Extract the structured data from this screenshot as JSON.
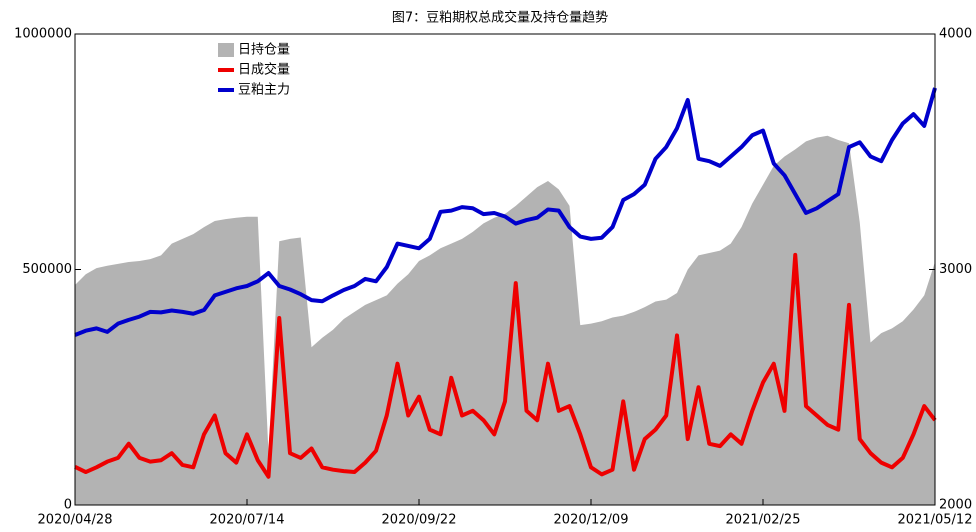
{
  "chart_data": {
    "type": "line",
    "title": "图7：豆粕期权总成交量及持仓量趋势",
    "categories": [
      "2020/04/28",
      null,
      null,
      null,
      null,
      null,
      null,
      null,
      null,
      null,
      null,
      null,
      null,
      null,
      null,
      null,
      "2020/07/14",
      null,
      null,
      null,
      null,
      null,
      null,
      null,
      null,
      null,
      null,
      null,
      null,
      null,
      null,
      null,
      "2020/09/22",
      null,
      null,
      null,
      null,
      null,
      null,
      null,
      null,
      null,
      null,
      null,
      null,
      null,
      null,
      null,
      "2020/12/09",
      null,
      null,
      null,
      null,
      null,
      null,
      null,
      null,
      null,
      null,
      null,
      null,
      null,
      null,
      null,
      "2021/02/25",
      null,
      null,
      null,
      null,
      null,
      null,
      null,
      null,
      null,
      null,
      null,
      null,
      null,
      null,
      null,
      "2021/05/12"
    ],
    "series": [
      {
        "name": "日持仓量",
        "style": "area",
        "color": "#b3b3b3",
        "values": [
          467000,
          490000,
          503000,
          508000,
          512000,
          516000,
          518000,
          522000,
          530000,
          555000,
          565000,
          575000,
          590000,
          603000,
          607000,
          610000,
          612000,
          612000,
          110000,
          560000,
          565000,
          568000,
          335000,
          355000,
          372000,
          395000,
          410000,
          425000,
          435000,
          445000,
          470000,
          490000,
          518000,
          530000,
          545000,
          555000,
          565000,
          580000,
          598000,
          610000,
          618000,
          635000,
          655000,
          675000,
          688000,
          670000,
          635000,
          382000,
          385000,
          390000,
          398000,
          402000,
          410000,
          420000,
          432000,
          436000,
          450000,
          500000,
          530000,
          535000,
          540000,
          555000,
          590000,
          640000,
          680000,
          720000,
          740000,
          755000,
          772000,
          780000,
          784000,
          775000,
          768000,
          600000,
          345000,
          365000,
          375000,
          390000,
          415000,
          445000,
          516000
        ]
      },
      {
        "name": "日成交量",
        "style": "line",
        "color": "#ee0000",
        "values": [
          81000,
          70000,
          80000,
          92000,
          100000,
          130000,
          100000,
          92000,
          95000,
          110000,
          85000,
          80000,
          150000,
          190000,
          110000,
          90000,
          150000,
          95000,
          60000,
          397000,
          110000,
          100000,
          120000,
          80000,
          75000,
          72000,
          70000,
          90000,
          115000,
          190000,
          300000,
          190000,
          230000,
          160000,
          150000,
          270000,
          190000,
          200000,
          180000,
          150000,
          220000,
          471000,
          200000,
          180000,
          300000,
          200000,
          210000,
          150000,
          80000,
          65000,
          75000,
          220000,
          75000,
          140000,
          160000,
          190000,
          360000,
          140000,
          250000,
          130000,
          125000,
          150000,
          130000,
          200000,
          260000,
          300000,
          200000,
          531000,
          210000,
          190000,
          170000,
          160000,
          425000,
          140000,
          110000,
          90000,
          80000,
          100000,
          150000,
          210000,
          180000
        ]
      },
      {
        "name": "豆粕主力",
        "style": "line",
        "axis": "y2",
        "color": "#0000cc",
        "values": [
          2722,
          2740,
          2750,
          2735,
          2770,
          2786,
          2800,
          2820,
          2818,
          2826,
          2820,
          2812,
          2828,
          2890,
          2905,
          2920,
          2930,
          2950,
          2985,
          2930,
          2915,
          2895,
          2870,
          2865,
          2890,
          2913,
          2930,
          2960,
          2950,
          3010,
          3110,
          3100,
          3090,
          3130,
          3245,
          3250,
          3265,
          3260,
          3235,
          3240,
          3225,
          3195,
          3210,
          3220,
          3255,
          3250,
          3180,
          3140,
          3130,
          3135,
          3180,
          3295,
          3320,
          3360,
          3470,
          3520,
          3600,
          3720,
          3470,
          3460,
          3440,
          3480,
          3520,
          3570,
          3590,
          3450,
          3400,
          3320,
          3240,
          3260,
          3290,
          3320,
          3520,
          3540,
          3480,
          3460,
          3550,
          3620,
          3660,
          3610,
          3771
        ]
      }
    ],
    "ylim": [
      0,
      1000000
    ],
    "yticks": [
      0,
      500000,
      1000000
    ],
    "y2lim": [
      2000,
      4000
    ],
    "y2ticks": [
      2000,
      3000,
      4000
    ],
    "legend": "upper left"
  }
}
